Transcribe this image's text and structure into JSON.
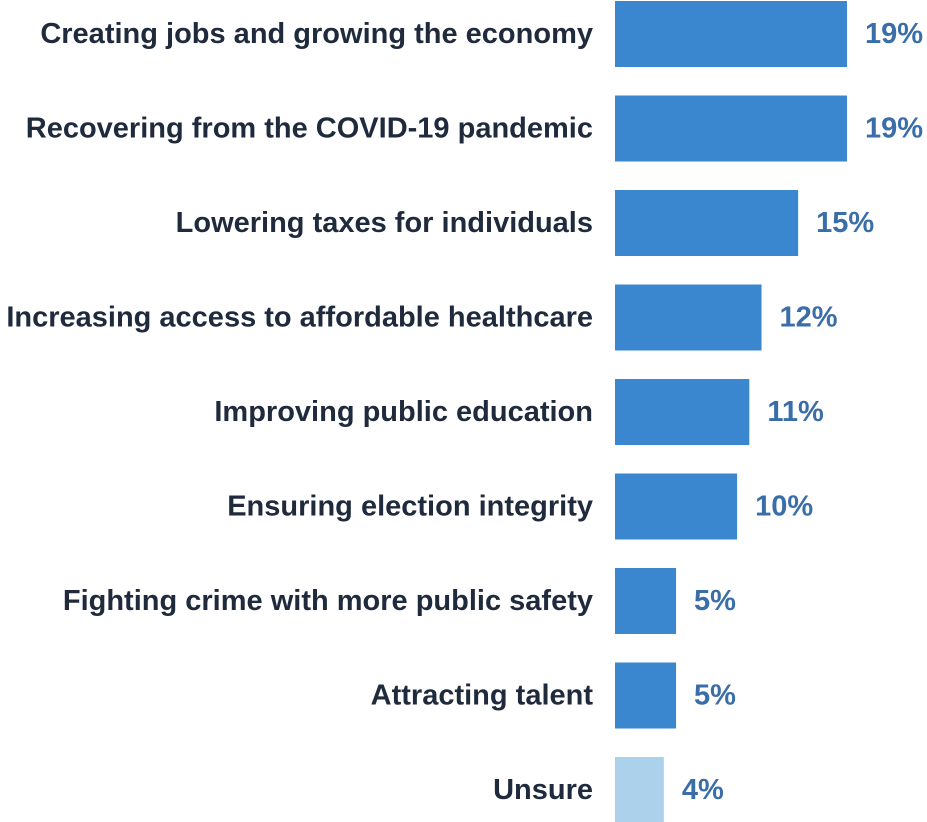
{
  "chart_data": {
    "type": "bar",
    "orientation": "horizontal",
    "categories": [
      "Creating jobs and growing the economy",
      "Recovering from the COVID-19 pandemic",
      "Lowering taxes for individuals",
      "Increasing access to affordable healthcare",
      "Improving public education",
      "Ensuring election integrity",
      "Fighting crime with more public safety",
      "Attracting talent",
      "Unsure"
    ],
    "values": [
      19,
      19,
      15,
      12,
      11,
      10,
      5,
      5,
      4
    ],
    "value_labels": [
      "19%",
      "19%",
      "15%",
      "12%",
      "11%",
      "10%",
      "5%",
      "5%",
      "4%"
    ],
    "unit": "%",
    "xlim": [
      0,
      19
    ],
    "grid": false,
    "colors": {
      "bar": "#3b87cf",
      "bar_unsure": "#acd1ea",
      "value_label": "#3a6ea8",
      "category_label": "#1f2a3c"
    }
  }
}
